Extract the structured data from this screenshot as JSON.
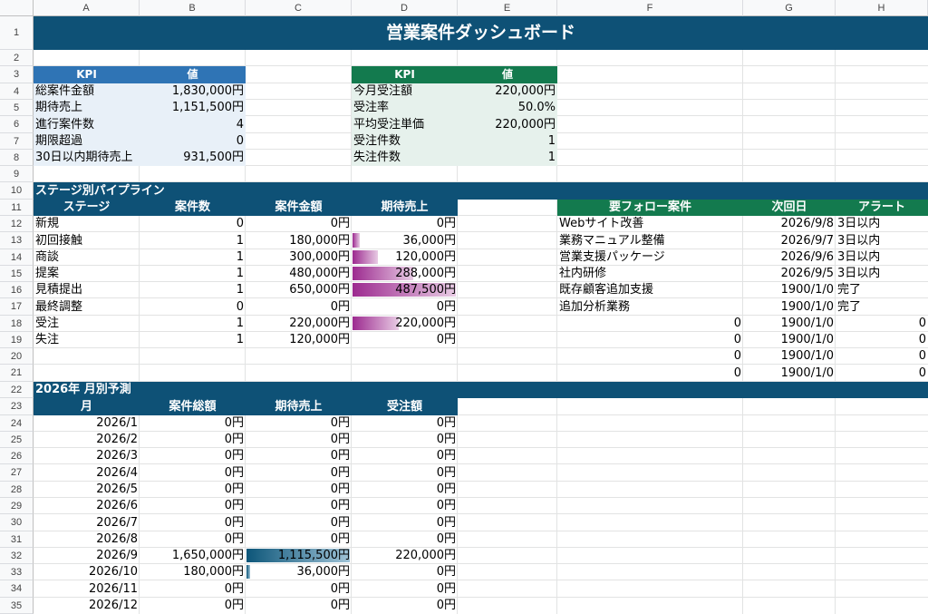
{
  "columns": [
    "A",
    "B",
    "C",
    "D",
    "E",
    "F",
    "G",
    "H"
  ],
  "rows": [
    "1",
    "2",
    "3",
    "4",
    "5",
    "6",
    "7",
    "8",
    "9",
    "10",
    "11",
    "12",
    "13",
    "14",
    "15",
    "16",
    "17",
    "18",
    "19",
    "20",
    "21",
    "22",
    "23",
    "24",
    "25",
    "26",
    "27",
    "28",
    "29",
    "30",
    "31",
    "32",
    "33",
    "34",
    "35"
  ],
  "title": "営業案件ダッシュボード",
  "colors": {
    "navy": "#0e5176",
    "blue_hdr": "#2f74b5",
    "green_hdr": "#137a4e",
    "kpi1_bg": "#e8f0f8",
    "kpi2_bg": "#e6f1ec",
    "stage_bar": "#9c2a8f",
    "month_bar": "#0d5679"
  },
  "kpi1": {
    "headers": [
      "KPI",
      "値"
    ],
    "rows": [
      {
        "label": "総案件金額",
        "value": "1,830,000円"
      },
      {
        "label": "期待売上",
        "value": "1,151,500円"
      },
      {
        "label": "進行案件数",
        "value": "4"
      },
      {
        "label": "期限超過",
        "value": "0"
      },
      {
        "label": "30日以内期待売上",
        "value": "931,500円"
      }
    ]
  },
  "kpi2": {
    "headers": [
      "KPI",
      "値"
    ],
    "rows": [
      {
        "label": "今月受注額",
        "value": "220,000円"
      },
      {
        "label": "受注率",
        "value": "50.0%"
      },
      {
        "label": "平均受注単価",
        "value": "220,000円"
      },
      {
        "label": "受注件数",
        "value": "1"
      },
      {
        "label": "失注件数",
        "value": "1"
      }
    ]
  },
  "pipeline": {
    "title": "ステージ別パイプライン",
    "headers": [
      "ステージ",
      "案件数",
      "案件金額",
      "期待売上"
    ],
    "max_expected": 487500,
    "rows": [
      {
        "stage": "新規",
        "count": "0",
        "amount": "0円",
        "expected": "0円",
        "expected_num": 0
      },
      {
        "stage": "初回接触",
        "count": "1",
        "amount": "180,000円",
        "expected": "36,000円",
        "expected_num": 36000
      },
      {
        "stage": "商談",
        "count": "1",
        "amount": "300,000円",
        "expected": "120,000円",
        "expected_num": 120000
      },
      {
        "stage": "提案",
        "count": "1",
        "amount": "480,000円",
        "expected": "288,000円",
        "expected_num": 288000
      },
      {
        "stage": "見積提出",
        "count": "1",
        "amount": "650,000円",
        "expected": "487,500円",
        "expected_num": 487500
      },
      {
        "stage": "最終調整",
        "count": "0",
        "amount": "0円",
        "expected": "0円",
        "expected_num": 0
      },
      {
        "stage": "受注",
        "count": "1",
        "amount": "220,000円",
        "expected": "220,000円",
        "expected_num": 220000
      },
      {
        "stage": "失注",
        "count": "1",
        "amount": "120,000円",
        "expected": "0円",
        "expected_num": 0
      }
    ]
  },
  "followup": {
    "headers": [
      "要フォロー案件",
      "次回日",
      "アラート"
    ],
    "rows": [
      {
        "name": "Webサイト改善",
        "date": "2026/9/8",
        "alert": "3日以内"
      },
      {
        "name": "業務マニュアル整備",
        "date": "2026/9/7",
        "alert": "3日以内"
      },
      {
        "name": "営業支援パッケージ",
        "date": "2026/9/6",
        "alert": "3日以内"
      },
      {
        "name": "社内研修",
        "date": "2026/9/5",
        "alert": "3日以内"
      },
      {
        "name": "既存顧客追加支援",
        "date": "1900/1/0",
        "alert": "完了"
      },
      {
        "name": "追加分析業務",
        "date": "1900/1/0",
        "alert": "完了"
      },
      {
        "name": "0",
        "date": "1900/1/0",
        "alert": "0"
      },
      {
        "name": "0",
        "date": "1900/1/0",
        "alert": "0"
      },
      {
        "name": "0",
        "date": "1900/1/0",
        "alert": "0"
      },
      {
        "name": "0",
        "date": "1900/1/0",
        "alert": "0"
      }
    ]
  },
  "forecast": {
    "title": "2026年 月別予測",
    "headers": [
      "月",
      "案件総額",
      "期待売上",
      "受注額"
    ],
    "max_expected": 1115500,
    "rows": [
      {
        "month": "2026/1",
        "total": "0円",
        "expected": "0円",
        "won": "0円",
        "expected_num": 0
      },
      {
        "month": "2026/2",
        "total": "0円",
        "expected": "0円",
        "won": "0円",
        "expected_num": 0
      },
      {
        "month": "2026/3",
        "total": "0円",
        "expected": "0円",
        "won": "0円",
        "expected_num": 0
      },
      {
        "month": "2026/4",
        "total": "0円",
        "expected": "0円",
        "won": "0円",
        "expected_num": 0
      },
      {
        "month": "2026/5",
        "total": "0円",
        "expected": "0円",
        "won": "0円",
        "expected_num": 0
      },
      {
        "month": "2026/6",
        "total": "0円",
        "expected": "0円",
        "won": "0円",
        "expected_num": 0
      },
      {
        "month": "2026/7",
        "total": "0円",
        "expected": "0円",
        "won": "0円",
        "expected_num": 0
      },
      {
        "month": "2026/8",
        "total": "0円",
        "expected": "0円",
        "won": "0円",
        "expected_num": 0
      },
      {
        "month": "2026/9",
        "total": "1,650,000円",
        "expected": "1,115,500円",
        "won": "220,000円",
        "expected_num": 1115500
      },
      {
        "month": "2026/10",
        "total": "180,000円",
        "expected": "36,000円",
        "won": "0円",
        "expected_num": 36000
      },
      {
        "month": "2026/11",
        "total": "0円",
        "expected": "0円",
        "won": "0円",
        "expected_num": 0
      },
      {
        "month": "2026/12",
        "total": "0円",
        "expected": "0円",
        "won": "0円",
        "expected_num": 0
      }
    ]
  }
}
